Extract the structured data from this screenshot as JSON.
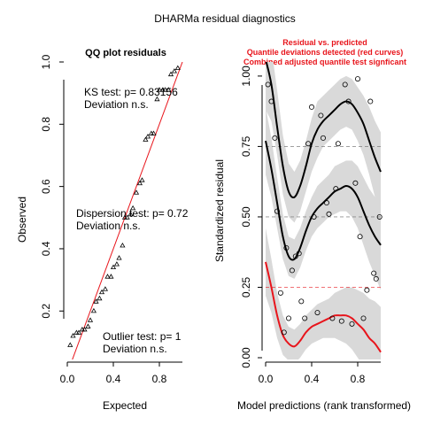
{
  "page": {
    "title": "DHARMa residual diagnostics"
  },
  "chart_data": [
    {
      "type": "scatter",
      "title": "QQ plot residuals",
      "xlabel": "Expected",
      "ylabel": "Observed",
      "xlim": [
        0,
        1
      ],
      "ylim": [
        0.05,
        1.0
      ],
      "x_ticks": [
        "0.0",
        "0.4",
        "0.8"
      ],
      "y_ticks": [
        "0.2",
        "0.4",
        "0.6",
        "0.8",
        "1.0"
      ],
      "grid": false,
      "reference_line": {
        "from": [
          0,
          0
        ],
        "to": [
          1,
          1
        ],
        "color": "#e8141b"
      },
      "annotations": [
        {
          "id": "ks",
          "line1": "KS test: p= 0.83156",
          "line2": "Deviation  n.s."
        },
        {
          "id": "disp",
          "line1": "Dispersion test: p= 0.72",
          "line2": "Deviation  n.s."
        },
        {
          "id": "outlier",
          "line1": "Outlier test: p= 1",
          "line2": "Deviation  n.s."
        }
      ],
      "points": [
        {
          "x": 0.025,
          "y": 0.09
        },
        {
          "x": 0.05,
          "y": 0.12
        },
        {
          "x": 0.08,
          "y": 0.13
        },
        {
          "x": 0.1,
          "y": 0.13
        },
        {
          "x": 0.13,
          "y": 0.14
        },
        {
          "x": 0.15,
          "y": 0.14
        },
        {
          "x": 0.18,
          "y": 0.15
        },
        {
          "x": 0.2,
          "y": 0.17
        },
        {
          "x": 0.23,
          "y": 0.2
        },
        {
          "x": 0.25,
          "y": 0.23
        },
        {
          "x": 0.28,
          "y": 0.24
        },
        {
          "x": 0.3,
          "y": 0.26
        },
        {
          "x": 0.33,
          "y": 0.27
        },
        {
          "x": 0.35,
          "y": 0.31
        },
        {
          "x": 0.38,
          "y": 0.31
        },
        {
          "x": 0.4,
          "y": 0.34
        },
        {
          "x": 0.43,
          "y": 0.35
        },
        {
          "x": 0.45,
          "y": 0.37
        },
        {
          "x": 0.48,
          "y": 0.41
        },
        {
          "x": 0.5,
          "y": 0.5
        },
        {
          "x": 0.52,
          "y": 0.5
        },
        {
          "x": 0.55,
          "y": 0.51
        },
        {
          "x": 0.57,
          "y": 0.53
        },
        {
          "x": 0.6,
          "y": 0.58
        },
        {
          "x": 0.63,
          "y": 0.61
        },
        {
          "x": 0.65,
          "y": 0.62
        },
        {
          "x": 0.68,
          "y": 0.75
        },
        {
          "x": 0.7,
          "y": 0.76
        },
        {
          "x": 0.73,
          "y": 0.77
        },
        {
          "x": 0.75,
          "y": 0.77
        },
        {
          "x": 0.78,
          "y": 0.88
        },
        {
          "x": 0.8,
          "y": 0.91
        },
        {
          "x": 0.83,
          "y": 0.91
        },
        {
          "x": 0.85,
          "y": 0.91
        },
        {
          "x": 0.88,
          "y": 0.91
        },
        {
          "x": 0.9,
          "y": 0.96
        },
        {
          "x": 0.93,
          "y": 0.97
        },
        {
          "x": 0.96,
          "y": 0.98
        }
      ]
    },
    {
      "type": "scatter",
      "title_lines": [
        "Residual vs. predicted",
        "Quantile deviations detected (red curves)",
        "Combined adjusted quantile test signficant"
      ],
      "title_color": "#e8141b",
      "xlabel": "Model predictions (rank transformed)",
      "ylabel": "Standardized residual",
      "xlim": [
        0,
        1
      ],
      "ylim": [
        0,
        1.05
      ],
      "x_ticks": [
        "0.0",
        "0.4",
        "0.8"
      ],
      "y_ticks": [
        "0.00",
        "0.25",
        "0.50",
        "0.75",
        "1.00"
      ],
      "grid": false,
      "reference_lines": [
        0.25,
        0.5,
        0.75
      ],
      "points": [
        {
          "x": 0.02,
          "y": 0.97
        },
        {
          "x": 0.05,
          "y": 0.91
        },
        {
          "x": 0.08,
          "y": 0.78
        },
        {
          "x": 0.1,
          "y": 0.52
        },
        {
          "x": 0.13,
          "y": 0.23
        },
        {
          "x": 0.16,
          "y": 0.09
        },
        {
          "x": 0.18,
          "y": 0.39
        },
        {
          "x": 0.2,
          "y": 0.14
        },
        {
          "x": 0.23,
          "y": 0.31
        },
        {
          "x": 0.26,
          "y": 0.36
        },
        {
          "x": 0.29,
          "y": 0.37
        },
        {
          "x": 0.31,
          "y": 0.2
        },
        {
          "x": 0.34,
          "y": 0.14
        },
        {
          "x": 0.37,
          "y": 0.76
        },
        {
          "x": 0.4,
          "y": 0.89
        },
        {
          "x": 0.42,
          "y": 0.5
        },
        {
          "x": 0.45,
          "y": 0.16
        },
        {
          "x": 0.48,
          "y": 0.86
        },
        {
          "x": 0.5,
          "y": 0.78
        },
        {
          "x": 0.53,
          "y": 0.55
        },
        {
          "x": 0.55,
          "y": 0.51
        },
        {
          "x": 0.58,
          "y": 0.14
        },
        {
          "x": 0.61,
          "y": 0.6
        },
        {
          "x": 0.63,
          "y": 0.76
        },
        {
          "x": 0.66,
          "y": 0.13
        },
        {
          "x": 0.69,
          "y": 0.97
        },
        {
          "x": 0.72,
          "y": 0.91
        },
        {
          "x": 0.75,
          "y": 0.12
        },
        {
          "x": 0.78,
          "y": 0.62
        },
        {
          "x": 0.8,
          "y": 0.99
        },
        {
          "x": 0.82,
          "y": 0.43
        },
        {
          "x": 0.85,
          "y": 0.14
        },
        {
          "x": 0.88,
          "y": 0.24
        },
        {
          "x": 0.91,
          "y": 0.91
        },
        {
          "x": 0.94,
          "y": 0.3
        },
        {
          "x": 0.96,
          "y": 0.28
        },
        {
          "x": 0.99,
          "y": 0.5
        }
      ],
      "quantile_curves": [
        {
          "quantile": 0.75,
          "color": "#000000",
          "x": [
            0.0,
            0.05,
            0.1,
            0.15,
            0.2,
            0.25,
            0.3,
            0.35,
            0.4,
            0.45,
            0.5,
            0.55,
            0.6,
            0.65,
            0.7,
            0.75,
            0.8,
            0.85,
            0.9,
            0.95,
            1.0
          ],
          "y": [
            1.06,
            0.97,
            0.82,
            0.68,
            0.59,
            0.57,
            0.61,
            0.68,
            0.76,
            0.81,
            0.84,
            0.86,
            0.88,
            0.9,
            0.91,
            0.9,
            0.87,
            0.83,
            0.77,
            0.71,
            0.66
          ],
          "band": [
            [
              0.88,
              1.16
            ],
            [
              0.84,
              1.1
            ],
            [
              0.72,
              0.95
            ],
            [
              0.58,
              0.79
            ],
            [
              0.5,
              0.69
            ],
            [
              0.48,
              0.66
            ],
            [
              0.52,
              0.7
            ],
            [
              0.59,
              0.77
            ],
            [
              0.66,
              0.85
            ],
            [
              0.71,
              0.91
            ],
            [
              0.75,
              0.93
            ],
            [
              0.77,
              0.95
            ],
            [
              0.79,
              0.97
            ],
            [
              0.81,
              0.99
            ],
            [
              0.82,
              1.0
            ],
            [
              0.81,
              0.99
            ],
            [
              0.77,
              0.96
            ],
            [
              0.72,
              0.93
            ],
            [
              0.65,
              0.89
            ],
            [
              0.57,
              0.84
            ],
            [
              0.51,
              0.8
            ]
          ]
        },
        {
          "quantile": 0.5,
          "color": "#000000",
          "x": [
            0.0,
            0.05,
            0.1,
            0.15,
            0.2,
            0.25,
            0.3,
            0.35,
            0.4,
            0.45,
            0.5,
            0.55,
            0.6,
            0.65,
            0.7,
            0.75,
            0.8,
            0.85,
            0.9,
            0.95,
            1.0
          ],
          "y": [
            0.77,
            0.67,
            0.55,
            0.43,
            0.36,
            0.35,
            0.39,
            0.45,
            0.5,
            0.53,
            0.55,
            0.57,
            0.59,
            0.6,
            0.61,
            0.6,
            0.57,
            0.52,
            0.47,
            0.43,
            0.4
          ],
          "band": [
            [
              0.65,
              0.89
            ],
            [
              0.57,
              0.78
            ],
            [
              0.46,
              0.64
            ],
            [
              0.35,
              0.51
            ],
            [
              0.29,
              0.43
            ],
            [
              0.28,
              0.42
            ],
            [
              0.32,
              0.46
            ],
            [
              0.38,
              0.52
            ],
            [
              0.43,
              0.57
            ],
            [
              0.46,
              0.61
            ],
            [
              0.48,
              0.63
            ],
            [
              0.5,
              0.65
            ],
            [
              0.51,
              0.68
            ],
            [
              0.52,
              0.69
            ],
            [
              0.52,
              0.7
            ],
            [
              0.5,
              0.7
            ],
            [
              0.46,
              0.68
            ],
            [
              0.4,
              0.64
            ],
            [
              0.34,
              0.6
            ],
            [
              0.29,
              0.57
            ],
            [
              0.24,
              0.56
            ]
          ]
        },
        {
          "quantile": 0.25,
          "color": "#e8141b",
          "x": [
            0.0,
            0.05,
            0.1,
            0.15,
            0.2,
            0.25,
            0.3,
            0.35,
            0.4,
            0.45,
            0.5,
            0.55,
            0.6,
            0.65,
            0.7,
            0.75,
            0.8,
            0.85,
            0.9,
            0.95,
            1.0
          ],
          "y": [
            0.34,
            0.25,
            0.15,
            0.08,
            0.05,
            0.04,
            0.06,
            0.09,
            0.11,
            0.12,
            0.13,
            0.14,
            0.15,
            0.15,
            0.15,
            0.14,
            0.12,
            0.1,
            0.07,
            0.05,
            0.02
          ],
          "band": [
            [
              0.22,
              0.46
            ],
            [
              0.16,
              0.35
            ],
            [
              0.07,
              0.23
            ],
            [
              0.01,
              0.15
            ],
            [
              -0.01,
              0.11
            ],
            [
              -0.02,
              0.1
            ],
            [
              0.0,
              0.12
            ],
            [
              0.03,
              0.15
            ],
            [
              0.05,
              0.17
            ],
            [
              0.06,
              0.19
            ],
            [
              0.07,
              0.2
            ],
            [
              0.07,
              0.21
            ],
            [
              0.07,
              0.23
            ],
            [
              0.06,
              0.24
            ],
            [
              0.05,
              0.25
            ],
            [
              0.03,
              0.25
            ],
            [
              0.0,
              0.24
            ],
            [
              -0.03,
              0.23
            ],
            [
              -0.07,
              0.21
            ],
            [
              -0.1,
              0.2
            ],
            [
              -0.14,
              0.18
            ]
          ]
        }
      ]
    }
  ]
}
